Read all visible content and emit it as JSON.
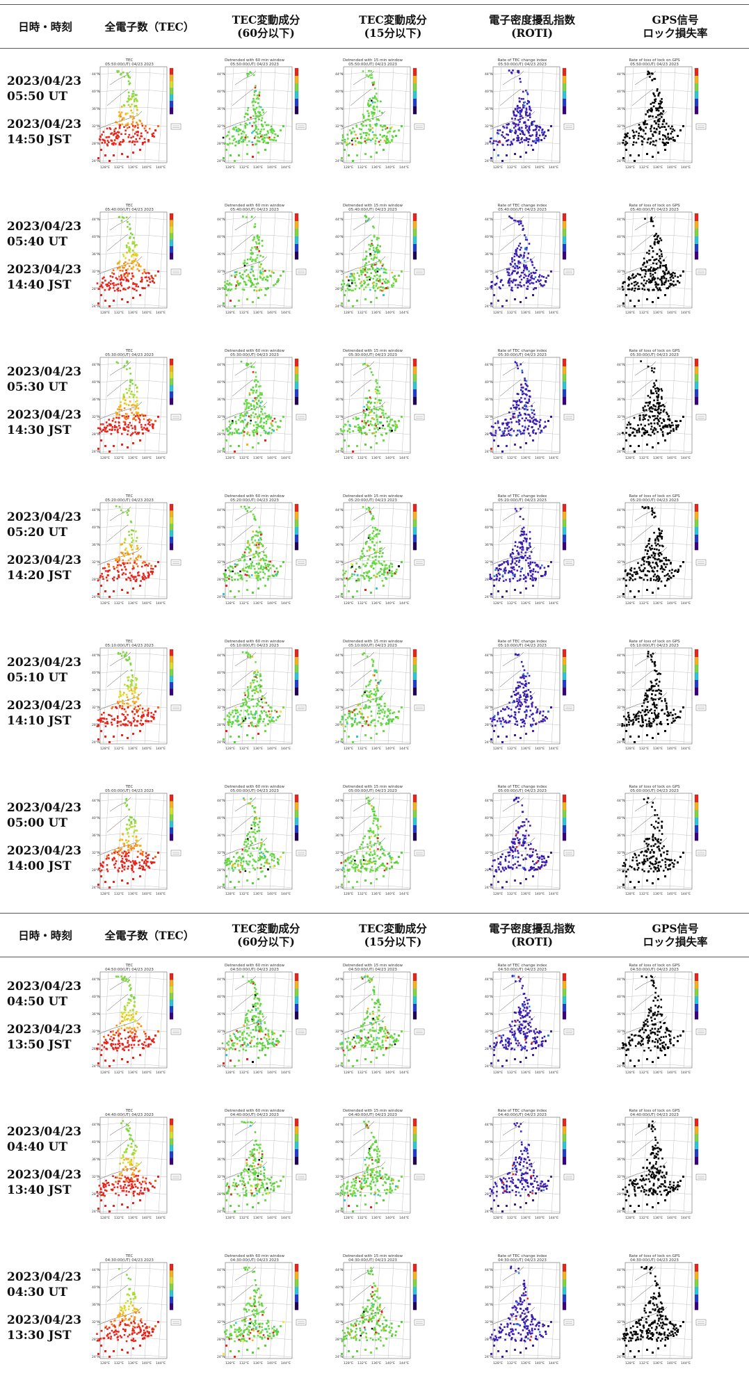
{
  "headers": {
    "datetime": "日時・時刻",
    "tec": "全電子数（TEC）",
    "tec60_line1": "TEC変動成分",
    "tec60_line2": "(60分以下)",
    "tec15_line1": "TEC変動成分",
    "tec15_line2": "(15分以下)",
    "roti_line1": "電子密度擾乱指数",
    "roti_line2": "(ROTI)",
    "gps_line1": "GPS信号",
    "gps_line2": "ロック損失率"
  },
  "map_titles": {
    "tec": "TEC",
    "tec60": "Detrended with 60 min window",
    "tec15": "Detrended with 15 min window",
    "roti": "Rate of TEC change index",
    "gps": "Rate of loss of lock on GPS"
  },
  "map_ticks": {
    "lat": [
      "44°N",
      "40°N",
      "36°N",
      "32°N",
      "28°N",
      "24°N"
    ],
    "lon": [
      "128°E",
      "132°E",
      "136°E",
      "140°E",
      "144°E"
    ]
  },
  "colors": {
    "tec_south": "#e8231a",
    "tec_mid": "#f7b21a",
    "tec_north": "#7fd641",
    "det_base": "#6fdc46",
    "roti_base": "#4422bb",
    "gps_base": "#000000"
  },
  "rows": [
    {
      "ut": "2023/04/23\n05:50 UT",
      "jst": "2023/04/23\n14:50 JST",
      "map_time": "05:50:00(UT) 04/23 2023"
    },
    {
      "ut": "2023/04/23\n05:40 UT",
      "jst": "2023/04/23\n14:40 JST",
      "map_time": "05:40:00(UT) 04/23 2023"
    },
    {
      "ut": "2023/04/23\n05:30 UT",
      "jst": "2023/04/23\n14:30 JST",
      "map_time": "05:30:00(UT) 04/23 2023"
    },
    {
      "ut": "2023/04/23\n05:20 UT",
      "jst": "2023/04/23\n14:20 JST",
      "map_time": "05:20:00(UT) 04/23 2023"
    },
    {
      "ut": "2023/04/23\n05:10 UT",
      "jst": "2023/04/23\n14:10 JST",
      "map_time": "05:10:00(UT) 04/23 2023"
    },
    {
      "ut": "2023/04/23\n05:00 UT",
      "jst": "2023/04/23\n14:00 JST",
      "map_time": "05:00:00(UT) 04/23 2023"
    },
    {
      "ut": "2023/04/23\n04:50 UT",
      "jst": "2023/04/23\n13:50 JST",
      "map_time": "04:50:00(UT) 04/23 2023"
    },
    {
      "ut": "2023/04/23\n04:40 UT",
      "jst": "2023/04/23\n13:40 JST",
      "map_time": "04:40:00(UT) 04/23 2023"
    },
    {
      "ut": "2023/04/23\n04:30 UT",
      "jst": "2023/04/23\n13:30 JST",
      "map_time": "04:30:00(UT) 04/23 2023"
    }
  ]
}
